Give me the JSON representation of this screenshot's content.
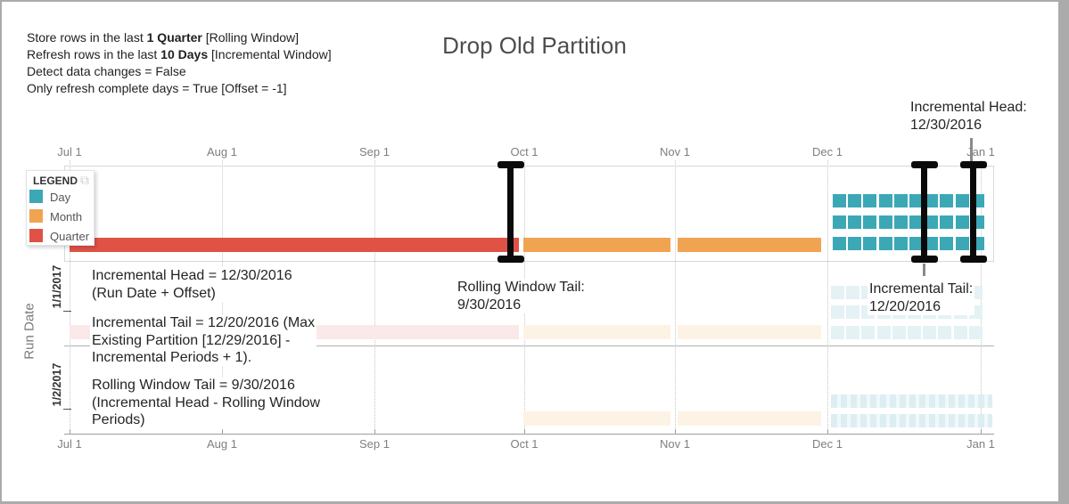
{
  "page": {
    "title": "Drop Old Partition"
  },
  "settings": {
    "line1": {
      "pre": "Store rows in the last ",
      "bold": "1 Quarter",
      "post": " [Rolling Window]"
    },
    "line2": {
      "pre": "Refresh rows in the last ",
      "bold": "10 Days",
      "post": " [Incremental Window]"
    },
    "line3": "Detect data changes = False",
    "line4": "Only refresh complete days = True [Offset = -1]"
  },
  "legend": {
    "title": "LEGEND",
    "copy_icon": "⧉",
    "items": [
      {
        "label": "Day",
        "color": "#3CA8B5"
      },
      {
        "label": "Month",
        "color": "#F0A452"
      },
      {
        "label": "Quarter",
        "color": "#E05245"
      }
    ]
  },
  "colors": {
    "day": "#3CA8B5",
    "month": "#F0A452",
    "quarter": "#E05245",
    "day_faded": "#E4F2F5",
    "month_faded": "#FDF3E5",
    "quarter_faded": "#FAE9E8",
    "marker_black": "#0a0a0a",
    "leader_gray": "#8a8a8a"
  },
  "axis": {
    "months": [
      "Jul 1",
      "Aug 1",
      "Sep 1",
      "Oct 1",
      "Nov 1",
      "Dec 1",
      "Jan 1"
    ],
    "y_label": "Run Date",
    "rows": [
      "1/1/2017",
      "1/2/2017"
    ]
  },
  "annotations": {
    "incremental_head_top": [
      "Incremental Head:",
      "12/30/2016"
    ],
    "incremental_head_calc": [
      "Incremental Head = 12/30/2016",
      "(Run Date + Offset)"
    ],
    "incremental_tail_calc": [
      "Incremental Tail = 12/20/2016 (Max",
      "Existing Partition [12/29/2016] -",
      "Incremental Periods + 1)."
    ],
    "rolling_window_tail_calc": [
      "Rolling Window Tail = 9/30/2016",
      "(Incremental Head - Rolling Window",
      "Periods)"
    ],
    "rolling_window_tail": [
      "Rolling Window Tail:",
      "9/30/2016"
    ],
    "incremental_tail": [
      "Incremental Tail:",
      "12/20/2016"
    ]
  },
  "chart_data": {
    "type": "bar",
    "subtype": "partition-timeline-gantt",
    "title": "Drop Old Partition",
    "x_axis": {
      "tick_labels": [
        "Jul 1",
        "Aug 1",
        "Sep 1",
        "Oct 1",
        "Nov 1",
        "Dec 1",
        "Jan 1"
      ],
      "range": [
        "2016-07-01",
        "2017-01-01"
      ],
      "gridlines": "dotted"
    },
    "y_axis": {
      "label": "Run Date",
      "rows": [
        "1/1/2017",
        "1/2/2017"
      ]
    },
    "legend_entries": [
      "Day",
      "Month",
      "Quarter"
    ],
    "legend_position": "top-left",
    "bands": [
      {
        "name": "current-partitions",
        "row": "header-band",
        "faded": false,
        "segments": [
          {
            "grain": "Quarter",
            "start": "2016-07-01",
            "end": "2016-10-01"
          },
          {
            "grain": "Month",
            "start": "2016-10-01",
            "end": "2016-11-01"
          },
          {
            "grain": "Month",
            "start": "2016-11-01",
            "end": "2016-12-01"
          },
          {
            "grain": "Day",
            "start": "2016-12-01",
            "end": "2016-12-30",
            "day_count": 30,
            "layout": "3 rows x 10 squares"
          }
        ]
      },
      {
        "name": "run-1/1/2017",
        "row": "1/1/2017",
        "faded": true,
        "segments": [
          {
            "grain": "Quarter",
            "start": "2016-07-01",
            "end": "2016-10-01"
          },
          {
            "grain": "Month",
            "start": "2016-10-01",
            "end": "2016-11-01"
          },
          {
            "grain": "Month",
            "start": "2016-11-01",
            "end": "2016-12-01"
          },
          {
            "grain": "Day",
            "start": "2016-12-01",
            "end": "2016-12-30",
            "day_count": 30,
            "layout": "3 rows x 10 squares"
          }
        ]
      },
      {
        "name": "run-1/2/2017",
        "row": "1/2/2017",
        "faded": true,
        "segments": [
          {
            "grain": "Month",
            "start": "2016-10-01",
            "end": "2016-11-01"
          },
          {
            "grain": "Month",
            "start": "2016-11-01",
            "end": "2016-12-01"
          },
          {
            "grain": "Day",
            "start": "2016-12-01",
            "end": "2016-12-31",
            "day_count": 31,
            "layout": "2 striped ribbons"
          }
        ]
      }
    ],
    "markers": [
      {
        "label": "Rolling Window Tail",
        "date": "9/30/2016",
        "style": "black I-beam"
      },
      {
        "label": "Incremental Tail",
        "date": "12/20/2016",
        "style": "black I-beam"
      },
      {
        "label": "Incremental Head",
        "date": "12/30/2016",
        "style": "black I-beam"
      }
    ]
  }
}
